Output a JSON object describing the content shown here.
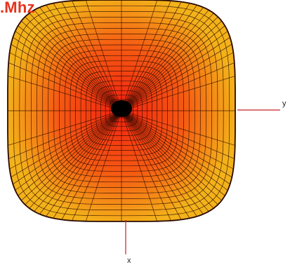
{
  "title": ".Mhz",
  "axes": {
    "x_label": "x",
    "y_label": "y"
  },
  "colors": {
    "title": "#e8321c",
    "surface_center": "#f02010",
    "surface_mid": "#f55a12",
    "surface_edge": "#f3b21a",
    "mesh": "#2a0a00",
    "axis_line": "#cc2222",
    "feed_point": "#000000"
  }
}
